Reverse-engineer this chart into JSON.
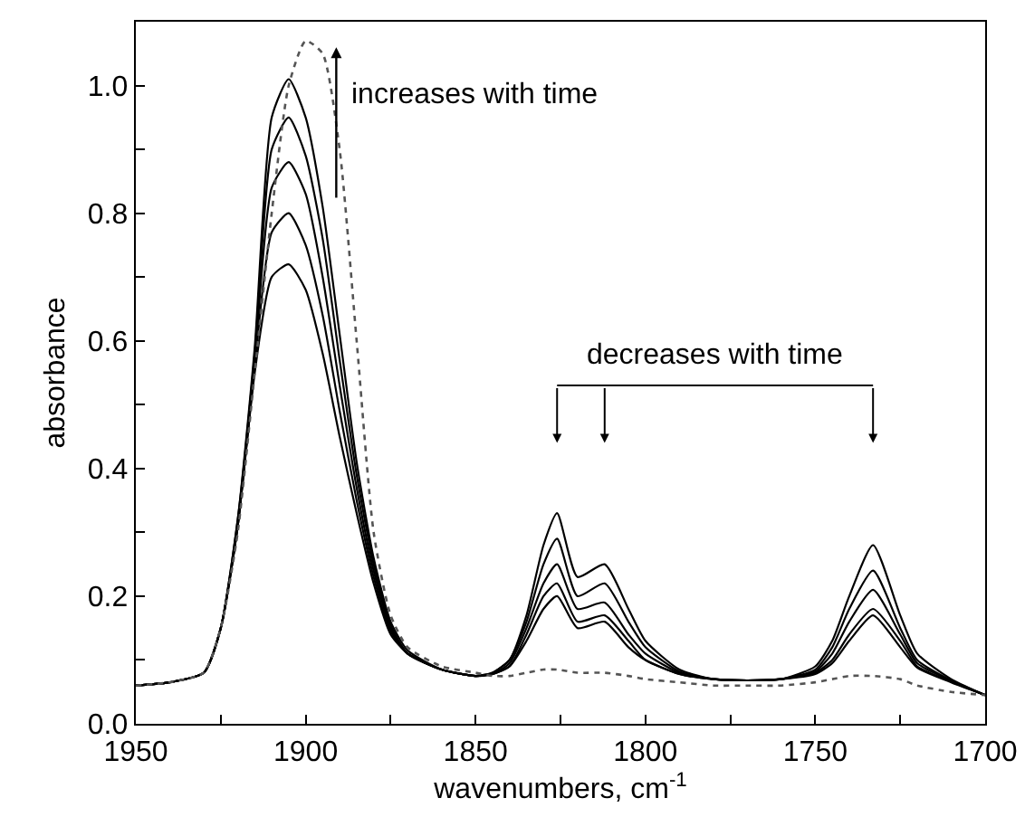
{
  "chart_data": {
    "type": "line",
    "xlabel": "wavenumbers, cm$^{-1}$",
    "ylabel": "absorbance",
    "x": [
      1950,
      1940,
      1930,
      1925,
      1920,
      1915,
      1910,
      1905,
      1900,
      1895,
      1890,
      1885,
      1880,
      1875,
      1870,
      1860,
      1850,
      1845,
      1840,
      1835,
      1830,
      1826,
      1820,
      1812,
      1805,
      1800,
      1790,
      1780,
      1770,
      1760,
      1750,
      1745,
      1740,
      1733,
      1725,
      1720,
      1710,
      1700
    ],
    "series": [
      {
        "color": "#000000",
        "line_style": "solid",
        "values": [
          0.06,
          0.065,
          0.08,
          0.15,
          0.31,
          0.55,
          0.7,
          0.72,
          0.68,
          0.58,
          0.45,
          0.33,
          0.22,
          0.14,
          0.11,
          0.085,
          0.075,
          0.08,
          0.1,
          0.17,
          0.28,
          0.33,
          0.23,
          0.25,
          0.18,
          0.13,
          0.085,
          0.07,
          0.068,
          0.07,
          0.09,
          0.13,
          0.2,
          0.28,
          0.17,
          0.11,
          0.07,
          0.045
        ]
      },
      {
        "color": "#000000",
        "line_style": "solid",
        "values": [
          0.06,
          0.065,
          0.08,
          0.15,
          0.31,
          0.56,
          0.77,
          0.8,
          0.75,
          0.64,
          0.49,
          0.35,
          0.23,
          0.145,
          0.11,
          0.085,
          0.075,
          0.08,
          0.1,
          0.16,
          0.25,
          0.29,
          0.2,
          0.22,
          0.16,
          0.12,
          0.082,
          0.07,
          0.068,
          0.07,
          0.085,
          0.12,
          0.18,
          0.24,
          0.15,
          0.1,
          0.068,
          0.045
        ]
      },
      {
        "color": "#000000",
        "line_style": "solid",
        "values": [
          0.06,
          0.065,
          0.08,
          0.15,
          0.31,
          0.57,
          0.84,
          0.88,
          0.83,
          0.7,
          0.53,
          0.37,
          0.24,
          0.15,
          0.11,
          0.085,
          0.075,
          0.078,
          0.095,
          0.15,
          0.22,
          0.25,
          0.18,
          0.19,
          0.14,
          0.11,
          0.08,
          0.07,
          0.068,
          0.07,
          0.082,
          0.11,
          0.16,
          0.21,
          0.14,
          0.095,
          0.067,
          0.045
        ]
      },
      {
        "color": "#000000",
        "line_style": "solid",
        "values": [
          0.06,
          0.065,
          0.08,
          0.15,
          0.32,
          0.58,
          0.9,
          0.95,
          0.89,
          0.76,
          0.57,
          0.39,
          0.25,
          0.155,
          0.11,
          0.085,
          0.075,
          0.078,
          0.09,
          0.14,
          0.2,
          0.22,
          0.16,
          0.17,
          0.13,
          0.1,
          0.078,
          0.07,
          0.068,
          0.07,
          0.08,
          0.1,
          0.14,
          0.18,
          0.13,
          0.09,
          0.066,
          0.045
        ]
      },
      {
        "color": "#000000",
        "line_style": "solid",
        "values": [
          0.06,
          0.065,
          0.08,
          0.15,
          0.32,
          0.59,
          0.95,
          1.01,
          0.95,
          0.81,
          0.61,
          0.41,
          0.26,
          0.16,
          0.115,
          0.085,
          0.075,
          0.078,
          0.09,
          0.13,
          0.18,
          0.2,
          0.15,
          0.16,
          0.12,
          0.1,
          0.078,
          0.07,
          0.068,
          0.07,
          0.078,
          0.095,
          0.13,
          0.17,
          0.12,
          0.088,
          0.065,
          0.045
        ]
      },
      {
        "color": "#555555",
        "line_style": "dotted",
        "values": [
          0.06,
          0.065,
          0.08,
          0.15,
          0.3,
          0.55,
          0.8,
          1.0,
          1.07,
          1.05,
          0.9,
          0.6,
          0.3,
          0.17,
          0.12,
          0.09,
          0.08,
          0.075,
          0.075,
          0.08,
          0.085,
          0.085,
          0.08,
          0.08,
          0.075,
          0.07,
          0.065,
          0.06,
          0.06,
          0.06,
          0.065,
          0.07,
          0.075,
          0.075,
          0.07,
          0.06,
          0.05,
          0.045
        ]
      }
    ],
    "xlim": [
      1950,
      1700
    ],
    "ylim": [
      0,
      1.1
    ],
    "xticks": [
      1950,
      {
        "value": 1925,
        "label": null
      },
      1900,
      {
        "value": 1875,
        "label": null
      },
      1850,
      {
        "value": 1825,
        "label": null
      },
      1800,
      {
        "value": 1775,
        "label": null
      },
      1750,
      {
        "value": 1725,
        "label": null
      },
      1700
    ],
    "yticks": [
      {
        "value": 0,
        "label": "0.0"
      },
      {
        "value": 0.1,
        "label": null
      },
      {
        "value": 0.2,
        "label": "0.2"
      },
      {
        "value": 0.3,
        "label": null
      },
      {
        "value": 0.4,
        "label": "0.4"
      },
      {
        "value": 0.5,
        "label": null
      },
      {
        "value": 0.6,
        "label": "0.6"
      },
      {
        "value": 0.7,
        "label": null
      },
      {
        "value": 0.8,
        "label": "0.8"
      },
      {
        "value": 0.9,
        "label": null
      },
      {
        "value": 1,
        "label": "1.0"
      }
    ],
    "annotations": [
      "increases with time",
      "decreases with time"
    ],
    "marker": "none"
  }
}
